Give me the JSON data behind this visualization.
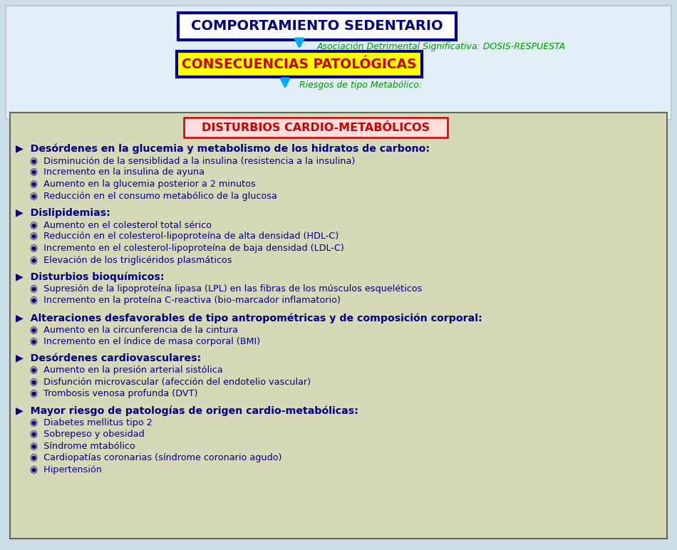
{
  "bg_outer": "#ccdde8",
  "bg_inner": "#d5d9b8",
  "bg_top": "#ddeeff",
  "title1_text": "COMPORTAMIENTO SEDENTARIO",
  "title1_bg": "#ffffff",
  "title1_border": "#000080",
  "title1_color": "#000080",
  "subtitle1_text": "Asociación Detrimental Significativa: DOSIS-RESPUESTA",
  "subtitle1_color": "#009900",
  "title2_text": "CONSECUENCIAS PATOLÓGICAS",
  "title2_bg": "#ffff00",
  "title2_border": "#000080",
  "title2_color": "#cc0000",
  "subtitle2_text": "Riesgos de tipo Metabólico:",
  "subtitle2_color": "#009900",
  "main_title_text": "DISTURBIOS CARDIO-METABÓLICOS",
  "main_title_bg": "#ffdddd",
  "main_title_border": "#cc0000",
  "main_title_color": "#cc0000",
  "arrow_color": "#00aaff",
  "section_color": "#000080",
  "item_color": "#000080",
  "sections": [
    {
      "header": "Desórdenes en la glucemia y metabolismo de los hidratos de carbono:",
      "items": [
        "Disminución de la sensiblidad a la insulina (resistencia a la insulina)",
        "Incremento en la insulina de ayuna",
        "Aumento en la glucemia posterior a 2 minutos",
        "Reducción en el consumo metabólico de la glucosa"
      ]
    },
    {
      "header": "Dislipidemias:",
      "items": [
        "Aumento en el colesterol total sérico",
        "Reducción en el colesterol-lipoproteína de alta densidad (HDL-C)",
        "Incremento en el colesterol-lipoproteína de baja densidad (LDL-C)",
        "Elevación de los triglicéridos plasmáticos"
      ]
    },
    {
      "header": "Disturbios bioquímicos:",
      "items": [
        "Supresión de la lipoproteína lipasa (LPL) en las fibras de los músculos esqueléticos",
        "Incremento en la proteína C-reactiva (bio-marcador inflamatorio)"
      ]
    },
    {
      "header": "Alteraciones desfavorables de tipo antropométricas y de composición corporal:",
      "items": [
        "Aumento en la circunferencia de la cintura",
        "Incremento en el índice de masa corporal (BMI)"
      ]
    },
    {
      "header": "Desórdenes cardiovasculares:",
      "items": [
        "Aumento en la presión arterial sistólica",
        "Disfunción microvascular (afección del endotelio vascular)",
        "Trombosis venosa profunda (DVT)"
      ]
    },
    {
      "header": "Mayor riesgo de patologías de origen cardio-metabólicas:",
      "items": [
        "Diabetes mellitus tipo 2",
        "Sobrepeso y obesidad",
        "Síndrome mtabólico",
        "Cardiopatías coronarias (síndrome coronario agudo)",
        "Hipertensión"
      ]
    }
  ]
}
